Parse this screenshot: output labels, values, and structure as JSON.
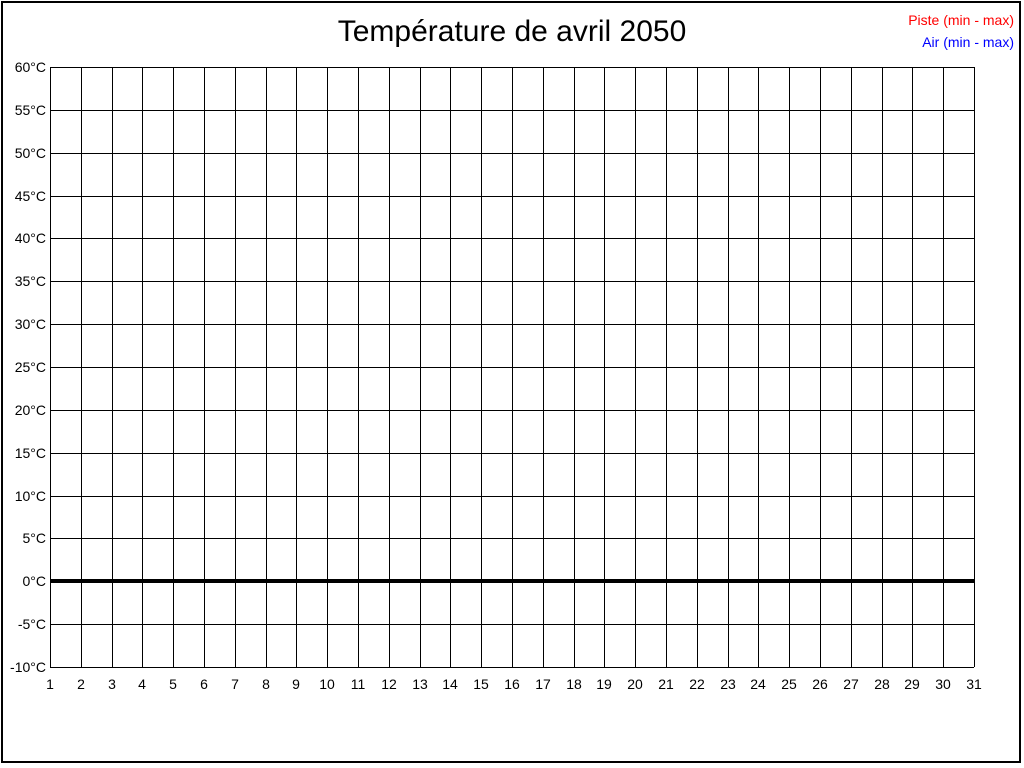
{
  "title": {
    "text": "Température de avril 2050"
  },
  "legend": {
    "position": "top-right"
  },
  "colors": {
    "piste": "#ff0000",
    "air": "#0000ff",
    "grid": "#000000",
    "background": "#ffffff"
  },
  "chart_data": {
    "type": "line",
    "title": "Température de avril 2050",
    "xlabel": "",
    "ylabel": "",
    "x_ticks": [
      "1",
      "2",
      "3",
      "4",
      "5",
      "6",
      "7",
      "8",
      "9",
      "10",
      "11",
      "12",
      "13",
      "14",
      "15",
      "16",
      "17",
      "18",
      "19",
      "20",
      "21",
      "22",
      "23",
      "24",
      "25",
      "26",
      "27",
      "28",
      "29",
      "30",
      "31"
    ],
    "xlim": [
      1,
      31
    ],
    "ylim": [
      -10,
      60
    ],
    "y_tick_step": 5,
    "y_tick_labels": [
      "60°C",
      "55°C",
      "50°C",
      "45°C",
      "40°C",
      "35°C",
      "30°C",
      "25°C",
      "20°C",
      "15°C",
      "10°C",
      "5°C",
      "0°C",
      "-5°C",
      "-10°C"
    ],
    "grid": true,
    "zero_line_value": 0,
    "legend_position": "top-right",
    "series": [
      {
        "name": "Piste (min - max)",
        "color": "#ff0000",
        "values": []
      },
      {
        "name": "Air (min - max)",
        "color": "#0000ff",
        "values": []
      }
    ]
  }
}
